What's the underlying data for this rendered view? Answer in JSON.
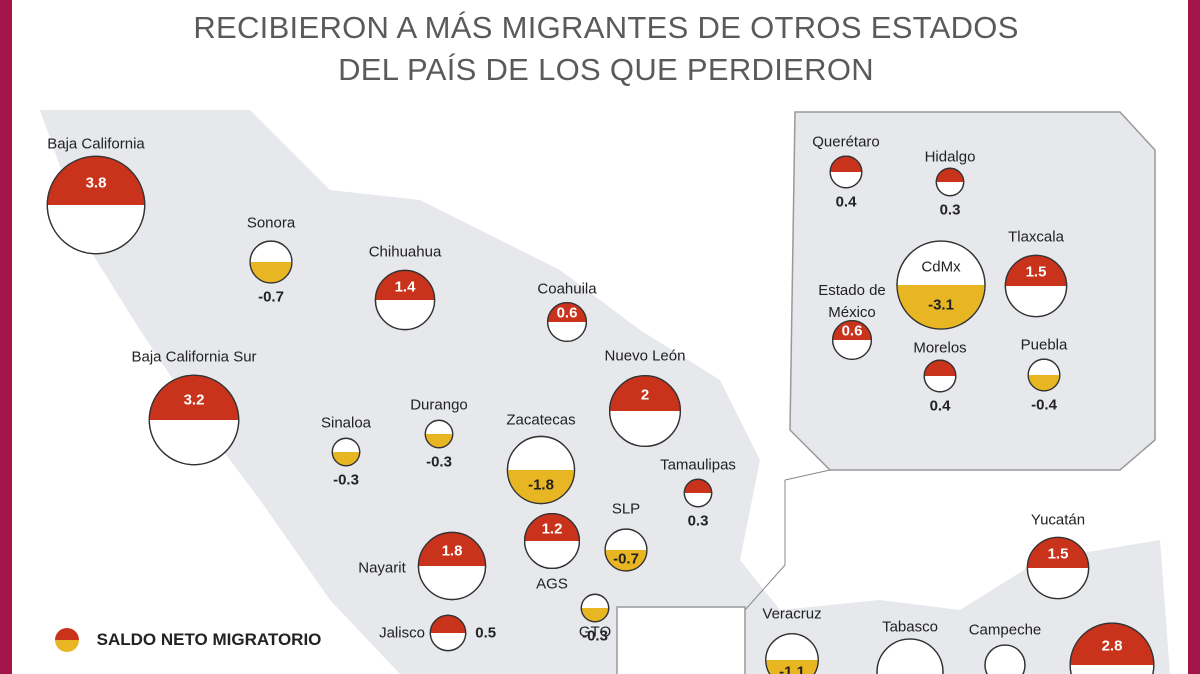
{
  "title": [
    "RECIBIERON A MÁS MIGRANTES DE OTROS ESTADOS",
    "DEL PAÍS DE LOS QUE PERDIERON"
  ],
  "legend": "SALDO NETO MIGRATORIO",
  "states": [
    {
      "name": "Baja California",
      "value": 3.8
    },
    {
      "name": "Sonora",
      "value": -0.7
    },
    {
      "name": "Chihuahua",
      "value": 1.4
    },
    {
      "name": "Coahuila",
      "value": 0.6
    },
    {
      "name": "Nuevo León",
      "value": 2
    },
    {
      "name": "Baja California Sur",
      "value": 3.2
    },
    {
      "name": "Sinaloa",
      "value": -0.3
    },
    {
      "name": "Durango",
      "value": -0.3
    },
    {
      "name": "Zacatecas",
      "value": -1.8
    },
    {
      "name": "Tamaulipas",
      "value": 0.3
    },
    {
      "name": "SLP",
      "value": -0.7
    },
    {
      "name": "AGS",
      "value": 1.2
    },
    {
      "name": "Nayarit",
      "value": 1.8
    },
    {
      "name": "Jalisco",
      "value": 0.5
    },
    {
      "name": "GTO",
      "value": -0.3
    },
    {
      "name": "Veracruz",
      "value": -1.1
    },
    {
      "name": "Tabasco",
      "value": null
    },
    {
      "name": "Campeche",
      "value": null
    },
    {
      "name": "Yucatán",
      "value": 1.5
    },
    {
      "name": null,
      "value": 2.8
    }
  ],
  "inset_states": [
    {
      "name": "Querétaro",
      "value": 0.4
    },
    {
      "name": "Hidalgo",
      "value": 0.3
    },
    {
      "name": "CdMx",
      "value": -3.1
    },
    {
      "name": "Tlaxcala",
      "value": 1.5
    },
    {
      "name": "Estado de México",
      "value": 0.6
    },
    {
      "name": "Morelos",
      "value": 0.4
    },
    {
      "name": "Puebla",
      "value": -0.4
    }
  ]
}
